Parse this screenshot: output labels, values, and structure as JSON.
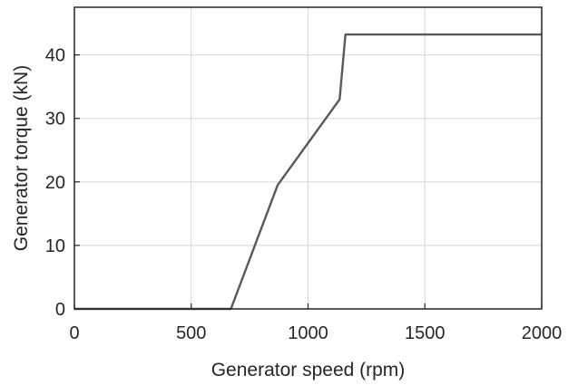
{
  "chart_data": {
    "type": "line",
    "title": "",
    "xlabel": "Generator speed (rpm)",
    "ylabel": "Generator torque (kN)",
    "xlim": [
      0,
      2000
    ],
    "ylim": [
      0,
      47.5
    ],
    "xticks": [
      0,
      500,
      1000,
      1500,
      2000
    ],
    "yticks": [
      0,
      10,
      20,
      30,
      40
    ],
    "grid": true,
    "legend": "none",
    "series": [
      {
        "color": "#595959",
        "x": [
          0,
          670,
          870,
          1135,
          1160,
          2000
        ],
        "y": [
          0,
          0,
          19.5,
          33.0,
          43.2,
          43.2
        ]
      }
    ]
  }
}
